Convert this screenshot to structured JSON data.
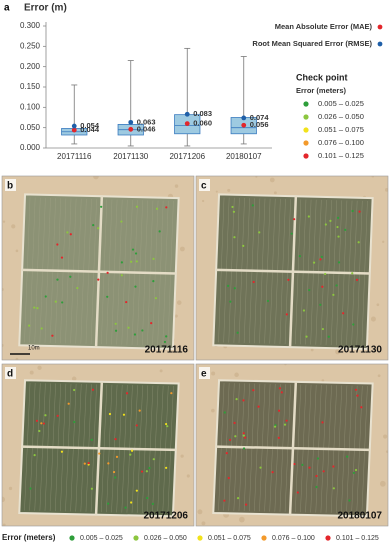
{
  "chart_data": {
    "type": "box",
    "panel_label": "a",
    "y_label": "Error (m)",
    "categories": [
      "20171116",
      "20171130",
      "20171206",
      "20180107"
    ],
    "ylim": [
      0,
      0.3
    ],
    "yticks": [
      {
        "value": 0,
        "label": "0.000"
      },
      {
        "value": 0.05,
        "label": "0.050"
      },
      {
        "value": 0.1,
        "label": "0.100"
      },
      {
        "value": 0.15,
        "label": "0.150"
      },
      {
        "value": 0.2,
        "label": "0.200"
      },
      {
        "value": 0.25,
        "label": "0.250"
      },
      {
        "value": 0.3,
        "label": "0.300"
      }
    ],
    "box_color": "#9ecae1",
    "boxes": [
      {
        "whisker_low": 0.01,
        "q1": 0.032,
        "median": 0.04,
        "q3": 0.048,
        "whisker_high": 0.155
      },
      {
        "whisker_low": 0.005,
        "q1": 0.032,
        "median": 0.045,
        "q3": 0.058,
        "whisker_high": 0.215
      },
      {
        "whisker_low": 0.005,
        "q1": 0.035,
        "median": 0.055,
        "q3": 0.082,
        "whisker_high": 0.245
      },
      {
        "whisker_low": 0.01,
        "q1": 0.035,
        "median": 0.05,
        "q3": 0.075,
        "whisker_high": 0.225
      }
    ],
    "series": [
      {
        "name": "Mean Absolute Error (MAE)",
        "color": "#e3262b",
        "values": [
          0.044,
          0.046,
          0.06,
          0.056
        ],
        "value_labels": [
          "0.044",
          "0.046",
          "0.060",
          "0.056"
        ]
      },
      {
        "name": "Root Mean Squared Error (RMSE)",
        "color": "#1f5fa8",
        "values": [
          0.054,
          0.063,
          0.083,
          0.074
        ],
        "value_labels": [
          "0.054",
          "0.063",
          "0.083",
          "0.074"
        ]
      }
    ]
  },
  "error_legend": {
    "title": "Check point",
    "subtitle": "Error (meters)",
    "classes": [
      {
        "label": "0.005 – 0.025",
        "color": "#2e9e3a"
      },
      {
        "label": "0.026 – 0.050",
        "color": "#8cc63f"
      },
      {
        "label": "0.051 – 0.075",
        "color": "#f2e21b"
      },
      {
        "label": "0.076 – 0.100",
        "color": "#f39a2b"
      },
      {
        "label": "0.101 – 0.125",
        "color": "#e3262b"
      }
    ]
  },
  "maps": {
    "scale_bar": "10m",
    "panels": [
      {
        "label": "b",
        "date": "20171116"
      },
      {
        "label": "c",
        "date": "20171130"
      },
      {
        "label": "d",
        "date": "20171206"
      },
      {
        "label": "e",
        "date": "20180107"
      }
    ]
  }
}
